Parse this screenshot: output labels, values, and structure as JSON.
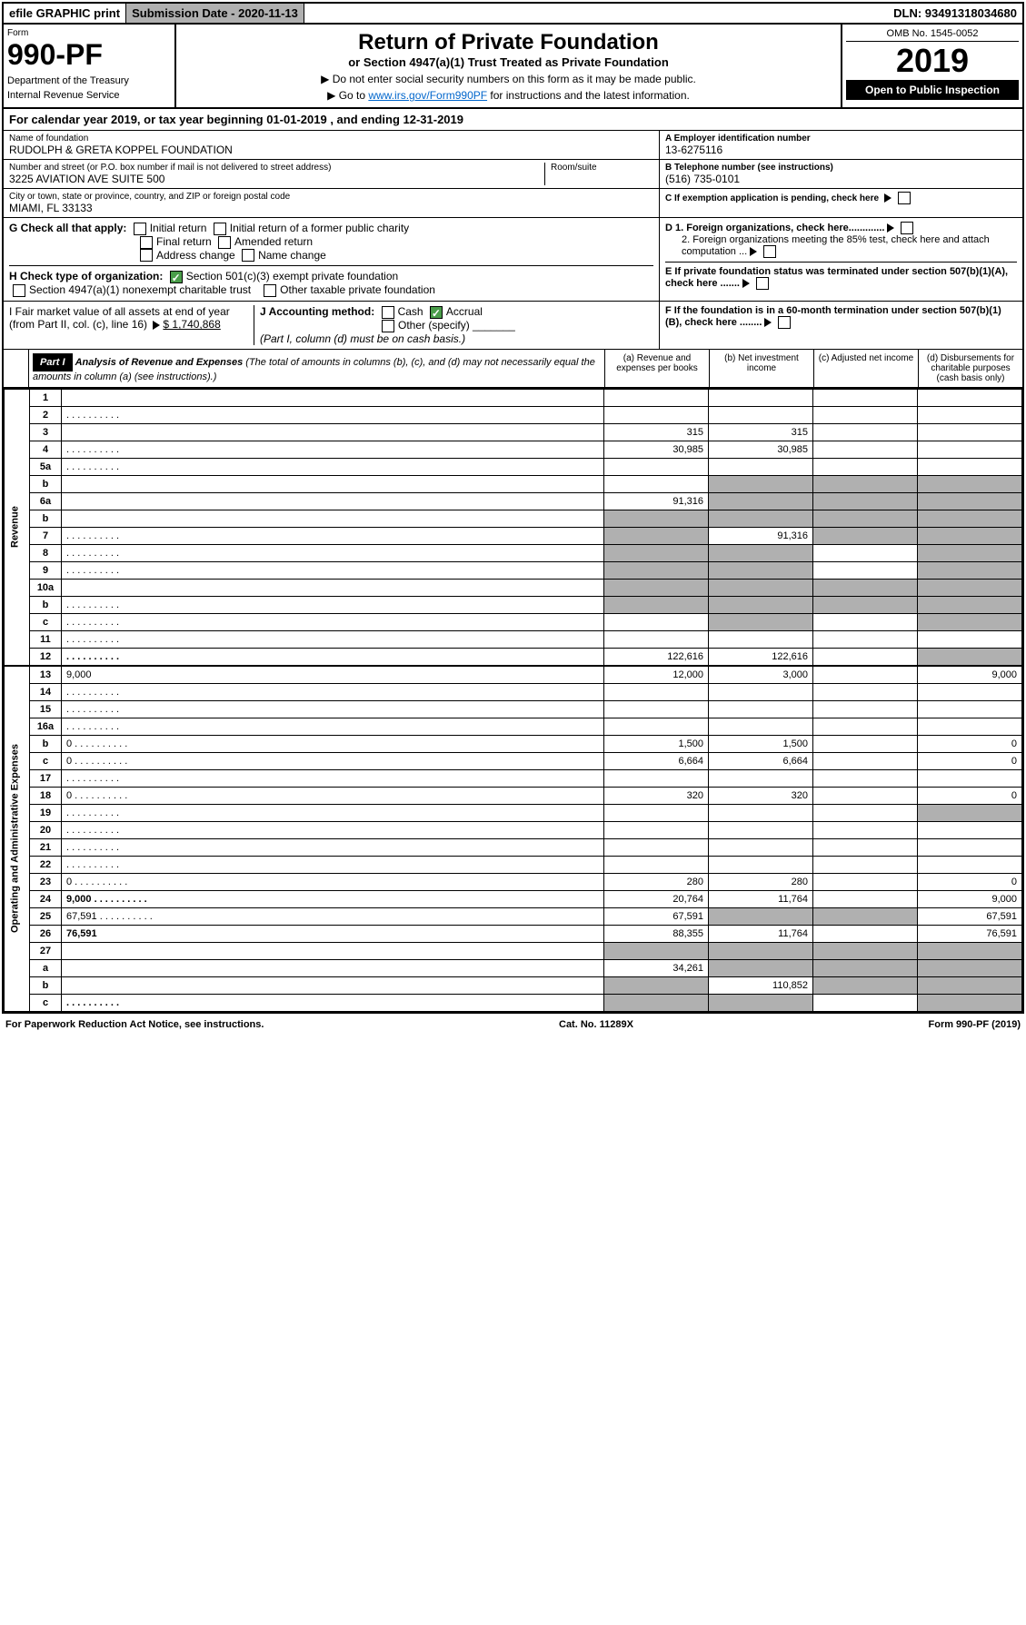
{
  "top": {
    "efile": "efile GRAPHIC print",
    "sub_label": "Submission Date - 2020-11-13",
    "dln": "DLN: 93491318034680"
  },
  "header": {
    "form_label": "Form",
    "form_num": "990-PF",
    "dept": "Department of the Treasury",
    "irs": "Internal Revenue Service",
    "title": "Return of Private Foundation",
    "subtitle": "or Section 4947(a)(1) Trust Treated as Private Foundation",
    "instr1": "▶ Do not enter social security numbers on this form as it may be made public.",
    "instr2_pre": "▶ Go to ",
    "instr2_link": "www.irs.gov/Form990PF",
    "instr2_post": " for instructions and the latest information.",
    "omb": "OMB No. 1545-0052",
    "year": "2019",
    "open": "Open to Public Inspection"
  },
  "cal": "For calendar year 2019, or tax year beginning 01-01-2019              , and ending 12-31-2019",
  "info": {
    "name_lbl": "Name of foundation",
    "name": "RUDOLPH & GRETA KOPPEL FOUNDATION",
    "addr_lbl": "Number and street (or P.O. box number if mail is not delivered to street address)",
    "addr": "3225 AVIATION AVE SUITE 500",
    "room_lbl": "Room/suite",
    "city_lbl": "City or town, state or province, country, and ZIP or foreign postal code",
    "city": "MIAMI, FL  33133",
    "a_lbl": "A Employer identification number",
    "a_val": "13-6275116",
    "b_lbl": "B Telephone number (see instructions)",
    "b_val": "(516) 735-0101",
    "c_lbl": "C If exemption application is pending, check here",
    "d1": "D 1. Foreign organizations, check here.............",
    "d2": "2. Foreign organizations meeting the 85% test, check here and attach computation ...",
    "e": "E If private foundation status was terminated under section 507(b)(1)(A), check here .......",
    "f": "F  If the foundation is in a 60-month termination under section 507(b)(1)(B), check here ........"
  },
  "g": {
    "label": "G Check all that apply:",
    "opts": [
      "Initial return",
      "Initial return of a former public charity",
      "Final return",
      "Amended return",
      "Address change",
      "Name change"
    ]
  },
  "h": {
    "label": "H Check type of organization:",
    "opt1": "Section 501(c)(3) exempt private foundation",
    "opt2": "Section 4947(a)(1) nonexempt charitable trust",
    "opt3": "Other taxable private foundation"
  },
  "i": {
    "label": "I Fair market value of all assets at end of year (from Part II, col. (c), line 16)",
    "val": "$  1,740,868"
  },
  "j": {
    "label": "J Accounting method:",
    "cash": "Cash",
    "accrual": "Accrual",
    "other": "Other (specify)",
    "note": "(Part I, column (d) must be on cash basis.)"
  },
  "part1": {
    "label": "Part I",
    "title": "Analysis of Revenue and Expenses",
    "note": "(The total of amounts in columns (b), (c), and (d) may not necessarily equal the amounts in column (a) (see instructions).)",
    "col_a": "(a)   Revenue and expenses per books",
    "col_b": "(b)  Net investment income",
    "col_c": "(c)  Adjusted net income",
    "col_d": "(d)  Disbursements for charitable purposes (cash basis only)"
  },
  "revenue_label": "Revenue",
  "expenses_label": "Operating and Administrative Expenses",
  "rows": [
    {
      "n": "1",
      "d": "",
      "a": "",
      "b": "",
      "c": ""
    },
    {
      "n": "2",
      "d": "",
      "a": "",
      "b": "",
      "c": "",
      "dots": true
    },
    {
      "n": "3",
      "d": "",
      "a": "315",
      "b": "315",
      "c": ""
    },
    {
      "n": "4",
      "d": "",
      "a": "30,985",
      "b": "30,985",
      "c": "",
      "dots": true
    },
    {
      "n": "5a",
      "d": "",
      "a": "",
      "b": "",
      "c": "",
      "dots": true
    },
    {
      "n": "b",
      "d": "",
      "a": "",
      "b": "",
      "c": "",
      "shade_bcd": true
    },
    {
      "n": "6a",
      "d": "",
      "a": "91,316",
      "b": "",
      "c": "",
      "shade_bcd": true
    },
    {
      "n": "b",
      "d": "",
      "a": "",
      "b": "",
      "c": "",
      "shade_all": true
    },
    {
      "n": "7",
      "d": "",
      "a": "",
      "b": "91,316",
      "c": "",
      "dots": true,
      "shade_a": true,
      "shade_cd": true
    },
    {
      "n": "8",
      "d": "",
      "a": "",
      "b": "",
      "c": "",
      "dots": true,
      "shade_ab": true,
      "shade_d": true
    },
    {
      "n": "9",
      "d": "",
      "a": "",
      "b": "",
      "c": "",
      "dots": true,
      "shade_ab": true,
      "shade_d": true
    },
    {
      "n": "10a",
      "d": "",
      "a": "",
      "b": "",
      "c": "",
      "shade_all": true
    },
    {
      "n": "b",
      "d": "",
      "a": "",
      "b": "",
      "c": "",
      "dots": true,
      "shade_all": true
    },
    {
      "n": "c",
      "d": "",
      "a": "",
      "b": "",
      "c": "",
      "dots": true,
      "shade_b": true,
      "shade_d": true
    },
    {
      "n": "11",
      "d": "",
      "a": "",
      "b": "",
      "c": "",
      "dots": true
    },
    {
      "n": "12",
      "d": "",
      "a": "122,616",
      "b": "122,616",
      "c": "",
      "dots": true,
      "bold": true,
      "shade_d": true
    }
  ],
  "exp_rows": [
    {
      "n": "13",
      "d": "9,000",
      "a": "12,000",
      "b": "3,000",
      "c": ""
    },
    {
      "n": "14",
      "d": "",
      "a": "",
      "b": "",
      "c": "",
      "dots": true
    },
    {
      "n": "15",
      "d": "",
      "a": "",
      "b": "",
      "c": "",
      "dots": true
    },
    {
      "n": "16a",
      "d": "",
      "a": "",
      "b": "",
      "c": "",
      "dots": true
    },
    {
      "n": "b",
      "d": "0",
      "a": "1,500",
      "b": "1,500",
      "c": "",
      "dots": true
    },
    {
      "n": "c",
      "d": "0",
      "a": "6,664",
      "b": "6,664",
      "c": "",
      "dots": true
    },
    {
      "n": "17",
      "d": "",
      "a": "",
      "b": "",
      "c": "",
      "dots": true
    },
    {
      "n": "18",
      "d": "0",
      "a": "320",
      "b": "320",
      "c": "",
      "dots": true
    },
    {
      "n": "19",
      "d": "",
      "a": "",
      "b": "",
      "c": "",
      "dots": true,
      "shade_d": true
    },
    {
      "n": "20",
      "d": "",
      "a": "",
      "b": "",
      "c": "",
      "dots": true
    },
    {
      "n": "21",
      "d": "",
      "a": "",
      "b": "",
      "c": "",
      "dots": true
    },
    {
      "n": "22",
      "d": "",
      "a": "",
      "b": "",
      "c": "",
      "dots": true
    },
    {
      "n": "23",
      "d": "0",
      "a": "280",
      "b": "280",
      "c": "",
      "dots": true
    },
    {
      "n": "24",
      "d": "9,000",
      "a": "20,764",
      "b": "11,764",
      "c": "",
      "dots": true,
      "bold": true
    },
    {
      "n": "25",
      "d": "67,591",
      "a": "67,591",
      "b": "",
      "c": "",
      "dots": true,
      "shade_bc": true
    },
    {
      "n": "26",
      "d": "76,591",
      "a": "88,355",
      "b": "11,764",
      "c": "",
      "bold": true
    },
    {
      "n": "27",
      "d": "",
      "a": "",
      "b": "",
      "c": "",
      "shade_all": true
    },
    {
      "n": "a",
      "d": "",
      "a": "34,261",
      "b": "",
      "c": "",
      "bold": true,
      "shade_bcd": true
    },
    {
      "n": "b",
      "d": "",
      "a": "",
      "b": "110,852",
      "c": "",
      "bold": true,
      "shade_a": true,
      "shade_cd": true
    },
    {
      "n": "c",
      "d": "",
      "a": "",
      "b": "",
      "c": "",
      "bold": true,
      "dots": true,
      "shade_ab": true,
      "shade_d": true
    }
  ],
  "footer": {
    "left": "For Paperwork Reduction Act Notice, see instructions.",
    "mid": "Cat. No. 11289X",
    "right": "Form 990-PF (2019)"
  }
}
